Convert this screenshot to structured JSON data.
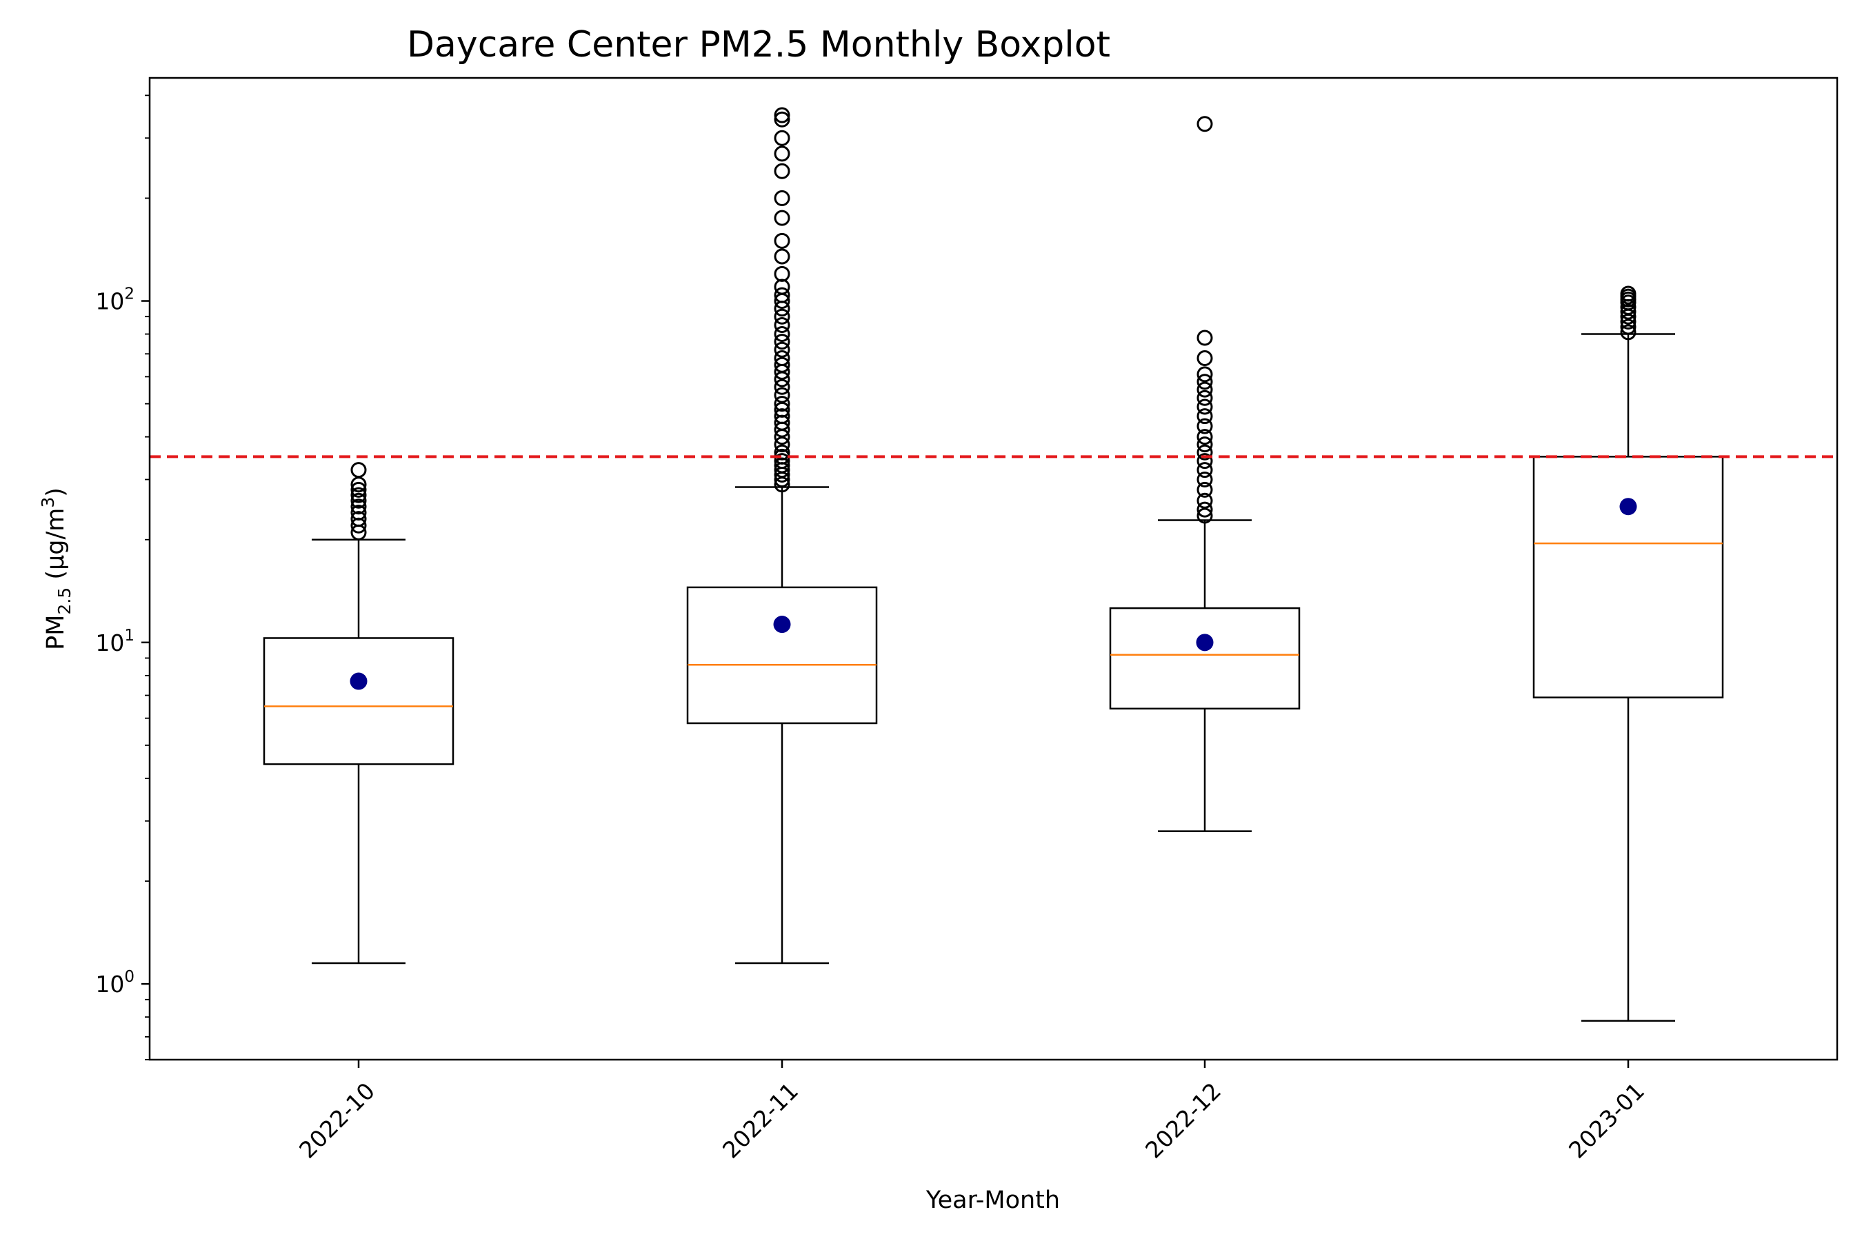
{
  "chart_data": {
    "type": "box",
    "title": "Daycare Center PM2.5 Monthly Boxplot",
    "xlabel": "Year-Month",
    "ylabel": {
      "base": "PM",
      "sub": "2.5",
      "unit_open": " (μg/m",
      "sup": "3",
      "unit_close": ")"
    },
    "yscale": "log",
    "ylim": [
      0.6,
      450
    ],
    "yticks": [
      {
        "value": 1,
        "base": "10",
        "exp": "0"
      },
      {
        "value": 10,
        "base": "10",
        "exp": "1"
      },
      {
        "value": 100,
        "base": "10",
        "exp": "2"
      }
    ],
    "categories": [
      "2022-10",
      "2022-11",
      "2022-12",
      "2023-01"
    ],
    "boxes": [
      {
        "label": "2022-10",
        "whisker_low": 1.15,
        "q1": 4.4,
        "median": 6.5,
        "q3": 10.3,
        "whisker_high": 20.0,
        "mean": 7.7,
        "outliers": [
          21.0,
          22.0,
          23.0,
          24.0,
          25.0,
          26.0,
          27.0,
          28.0,
          29.0,
          32.0
        ]
      },
      {
        "label": "2022-11",
        "whisker_low": 1.15,
        "q1": 5.8,
        "median": 8.6,
        "q3": 14.5,
        "whisker_high": 28.5,
        "mean": 11.3,
        "outliers": [
          29,
          30,
          31,
          32,
          33,
          34,
          35,
          36,
          38,
          40,
          42,
          44,
          46,
          48,
          50,
          53,
          56,
          59,
          62,
          65,
          68,
          72,
          76,
          80,
          85,
          90,
          95,
          100,
          104,
          110,
          120,
          135,
          150,
          175,
          200,
          240,
          270,
          300,
          340,
          350
        ]
      },
      {
        "label": "2022-12",
        "whisker_low": 2.8,
        "q1": 6.4,
        "median": 9.2,
        "q3": 12.6,
        "whisker_high": 22.8,
        "mean": 10.0,
        "outliers": [
          23.5,
          24.5,
          26,
          28,
          30,
          32,
          34,
          36,
          38,
          40,
          43,
          46,
          49,
          52,
          55,
          58,
          61,
          68,
          78,
          330
        ]
      },
      {
        "label": "2023-01",
        "whisker_low": 0.78,
        "q1": 6.9,
        "median": 19.5,
        "q3": 35.0,
        "whisker_high": 80.0,
        "mean": 25.0,
        "outliers": [
          81,
          84,
          87,
          90,
          93,
          96,
          99,
          101,
          103,
          105
        ]
      }
    ],
    "reference_line": {
      "value": 35,
      "color": "#e31a1c",
      "style": "dashed"
    },
    "colors": {
      "box": "#000000",
      "median": "#ff7f0e",
      "mean": "#00008b",
      "outlier_edge": "#000000",
      "reference": "#e31a1c"
    },
    "grid": false,
    "legend": "none"
  }
}
